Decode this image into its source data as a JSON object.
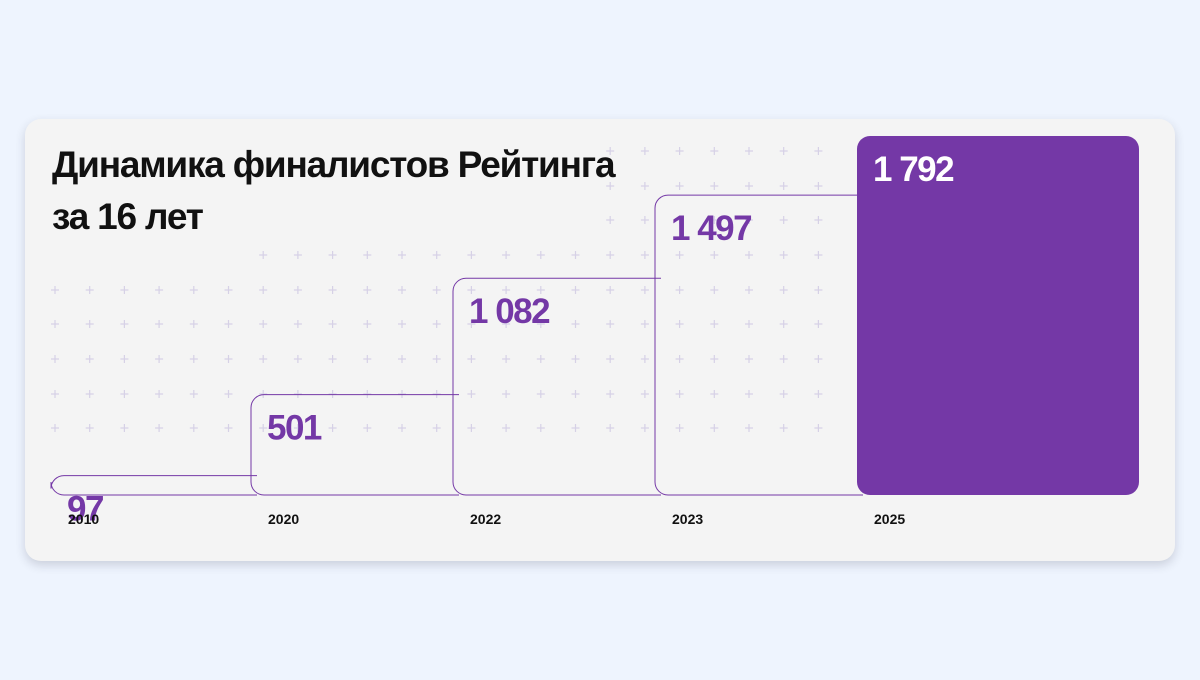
{
  "colors": {
    "page_background": "#eef4fe",
    "card_background": "#f4f4f4",
    "accent": "#7438a6",
    "title": "#111111",
    "axis_label": "#111111",
    "grid_cross": "#d6d1e6"
  },
  "chart_data": {
    "type": "bar",
    "title": [
      "Динамика финалистов Рейтинга",
      "за 16 лет"
    ],
    "categories": [
      "2010",
      "2020",
      "2022",
      "2023",
      "2025"
    ],
    "values": [
      97,
      501,
      1082,
      1497,
      1792
    ],
    "value_labels": [
      "97",
      "501",
      "1 082",
      "1 497",
      "1 792"
    ],
    "highlighted_category": "2025",
    "xlabel": "",
    "ylabel": "",
    "grid": false,
    "legend": "none"
  }
}
